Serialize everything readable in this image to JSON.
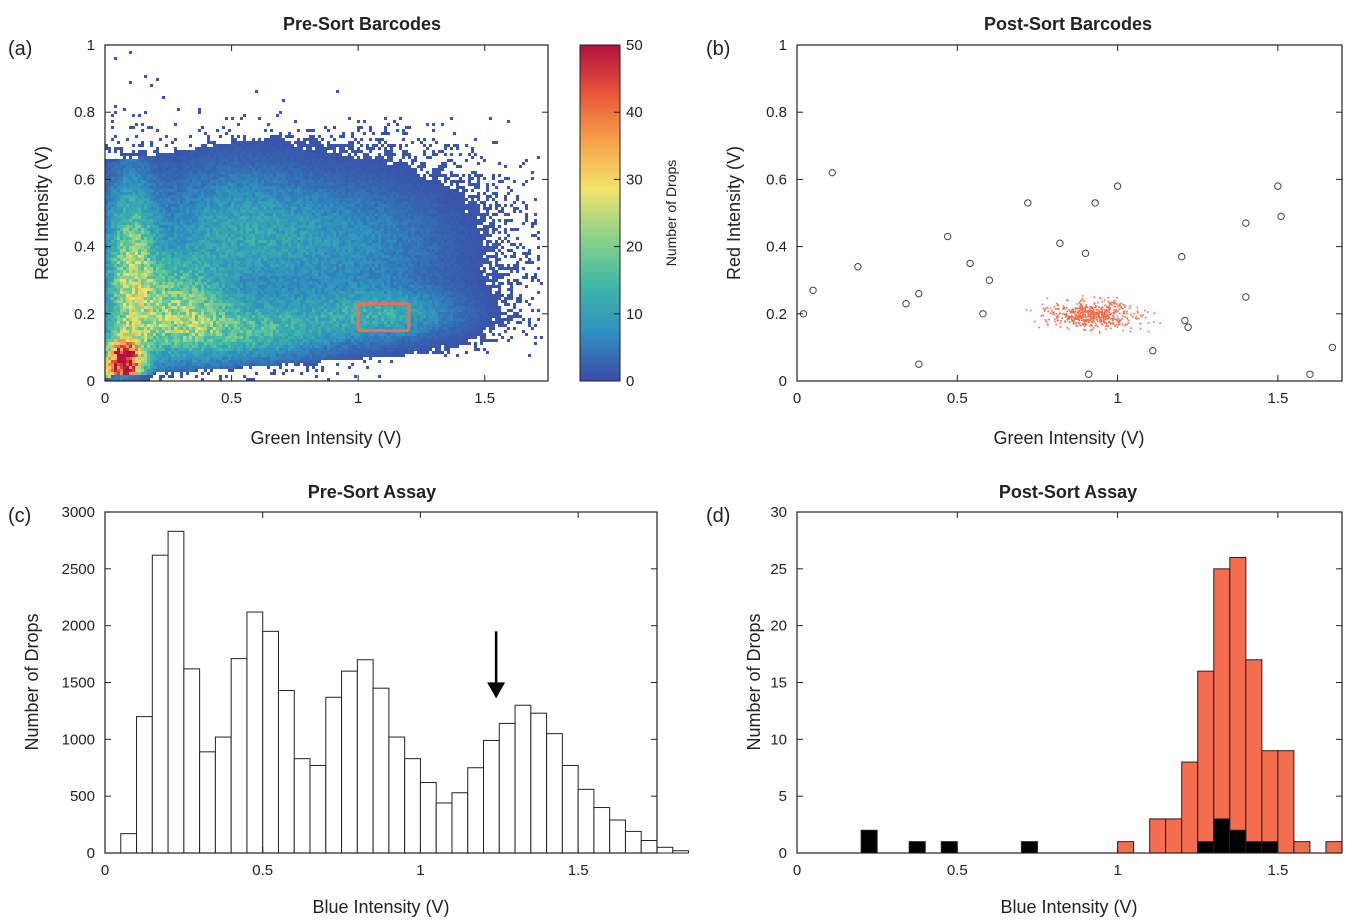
{
  "chart_data": [
    {
      "panel": "(a)",
      "type": "heatmap",
      "title": "Pre-Sort Barcodes",
      "xlabel": "Green Intensity (V)",
      "ylabel": "Red Intensity (V)",
      "xlim": [
        0,
        1.75
      ],
      "ylim": [
        0,
        1
      ],
      "xticks": [
        "0",
        "0.5",
        "1",
        "1.5"
      ],
      "yticks": [
        "0",
        "0.2",
        "0.4",
        "0.6",
        "0.8",
        "1"
      ],
      "clusters": [
        {
          "x": 0.07,
          "y": 0.05,
          "sx": 0.05,
          "sy": 0.05,
          "peak": 50
        },
        {
          "x": 0.1,
          "y": 0.33,
          "sx": 0.07,
          "sy": 0.18,
          "peak": 20
        },
        {
          "x": 0.28,
          "y": 0.22,
          "sx": 0.13,
          "sy": 0.1,
          "peak": 16
        },
        {
          "x": 0.5,
          "y": 0.45,
          "sx": 0.22,
          "sy": 0.13,
          "peak": 9
        },
        {
          "x": 0.55,
          "y": 0.15,
          "sx": 0.25,
          "sy": 0.06,
          "peak": 14
        },
        {
          "x": 0.95,
          "y": 0.4,
          "sx": 0.28,
          "sy": 0.13,
          "peak": 7
        },
        {
          "x": 1.1,
          "y": 0.2,
          "sx": 0.2,
          "sy": 0.05,
          "peak": 10
        }
      ],
      "gate": {
        "x": [
          1.0,
          1.2
        ],
        "y": [
          0.15,
          0.23
        ],
        "color": "#f46d4e"
      },
      "colorbar": {
        "label": "Number of Drops",
        "min": 0,
        "max": 50,
        "ticks": [
          "0",
          "10",
          "20",
          "30",
          "40",
          "50"
        ],
        "colormap": [
          "#3b4ba8",
          "#2f8fc0",
          "#3fb8a6",
          "#8dd28a",
          "#f2e46a",
          "#f8a14a",
          "#e8553a",
          "#b2103f"
        ]
      }
    },
    {
      "panel": "(b)",
      "type": "scatter",
      "title": "Post-Sort Barcodes",
      "xlabel": "Green Intensity (V)",
      "ylabel": "Red Intensity (V)",
      "xlim": [
        0,
        1.7
      ],
      "ylim": [
        0,
        1
      ],
      "xticks": [
        "0",
        "0.5",
        "1",
        "1.5"
      ],
      "yticks": [
        "0",
        "0.2",
        "0.4",
        "0.6",
        "0.8",
        "1"
      ],
      "outliers": [
        [
          0.02,
          0.2
        ],
        [
          0.05,
          0.27
        ],
        [
          0.11,
          0.62
        ],
        [
          0.19,
          0.34
        ],
        [
          0.34,
          0.23
        ],
        [
          0.38,
          0.26
        ],
        [
          0.38,
          0.05
        ],
        [
          0.47,
          0.43
        ],
        [
          0.54,
          0.35
        ],
        [
          0.58,
          0.2
        ],
        [
          0.6,
          0.3
        ],
        [
          0.72,
          0.53
        ],
        [
          0.82,
          0.41
        ],
        [
          0.9,
          0.38
        ],
        [
          0.91,
          0.02
        ],
        [
          0.93,
          0.53
        ],
        [
          1.0,
          0.58
        ],
        [
          1.11,
          0.09
        ],
        [
          1.2,
          0.37
        ],
        [
          1.21,
          0.18
        ],
        [
          1.22,
          0.16
        ],
        [
          1.4,
          0.47
        ],
        [
          1.4,
          0.25
        ],
        [
          1.5,
          0.58
        ],
        [
          1.51,
          0.49
        ],
        [
          1.6,
          0.02
        ],
        [
          1.67,
          0.1
        ]
      ],
      "sorted_cluster": {
        "x": 0.92,
        "y": 0.2,
        "sx": 0.06,
        "sy": 0.02,
        "n": 600,
        "color": "#f46d4e"
      }
    },
    {
      "panel": "(c)",
      "type": "bar",
      "title": "Pre-Sort Assay",
      "xlabel": "Blue Intensity (V)",
      "ylabel": "Number of Drops",
      "xlim": [
        0,
        1.75
      ],
      "ylim": [
        0,
        3000
      ],
      "xticks": [
        "0",
        "0.5",
        "1",
        "1.5"
      ],
      "yticks": [
        "0",
        "500",
        "1000",
        "1500",
        "2000",
        "2500",
        "3000"
      ],
      "bin_start": 0.05,
      "bin_width": 0.05,
      "values": [
        170,
        1200,
        2620,
        2830,
        1620,
        890,
        1020,
        1710,
        2120,
        1950,
        1430,
        830,
        770,
        1370,
        1600,
        1700,
        1450,
        1020,
        830,
        620,
        440,
        530,
        750,
        990,
        1140,
        1300,
        1230,
        1050,
        770,
        560,
        400,
        290,
        190,
        110,
        50,
        20
      ],
      "annotation": {
        "x": 1.24,
        "y_start": 1950,
        "y_end": 1360
      }
    },
    {
      "panel": "(d)",
      "type": "bar",
      "title": "Post-Sort Assay",
      "xlabel": "Blue Intensity (V)",
      "ylabel": "Number of Drops",
      "xlim": [
        0,
        1.7
      ],
      "ylim": [
        0,
        30
      ],
      "xticks": [
        "0",
        "0.5",
        "1",
        "1.5"
      ],
      "yticks": [
        "0",
        "5",
        "10",
        "15",
        "20",
        "25",
        "30"
      ],
      "bin_width": 0.05,
      "series": [
        {
          "color": "#f46d4e",
          "x": [
            1.0,
            1.1,
            1.15,
            1.2,
            1.25,
            1.3,
            1.35,
            1.4,
            1.45,
            1.5,
            1.55,
            1.65
          ],
          "values": [
            1,
            3,
            3,
            8,
            16,
            25,
            26,
            17,
            9,
            9,
            1,
            1
          ]
        },
        {
          "color": "#000000",
          "x": [
            0.2,
            0.35,
            0.45,
            0.7,
            1.25,
            1.3,
            1.35,
            1.4,
            1.45,
            1.5,
            1.55,
            1.6,
            1.65
          ],
          "values": [
            2,
            1,
            1,
            1,
            1,
            3,
            2,
            1,
            1,
            0,
            0,
            0,
            0
          ]
        }
      ]
    }
  ]
}
